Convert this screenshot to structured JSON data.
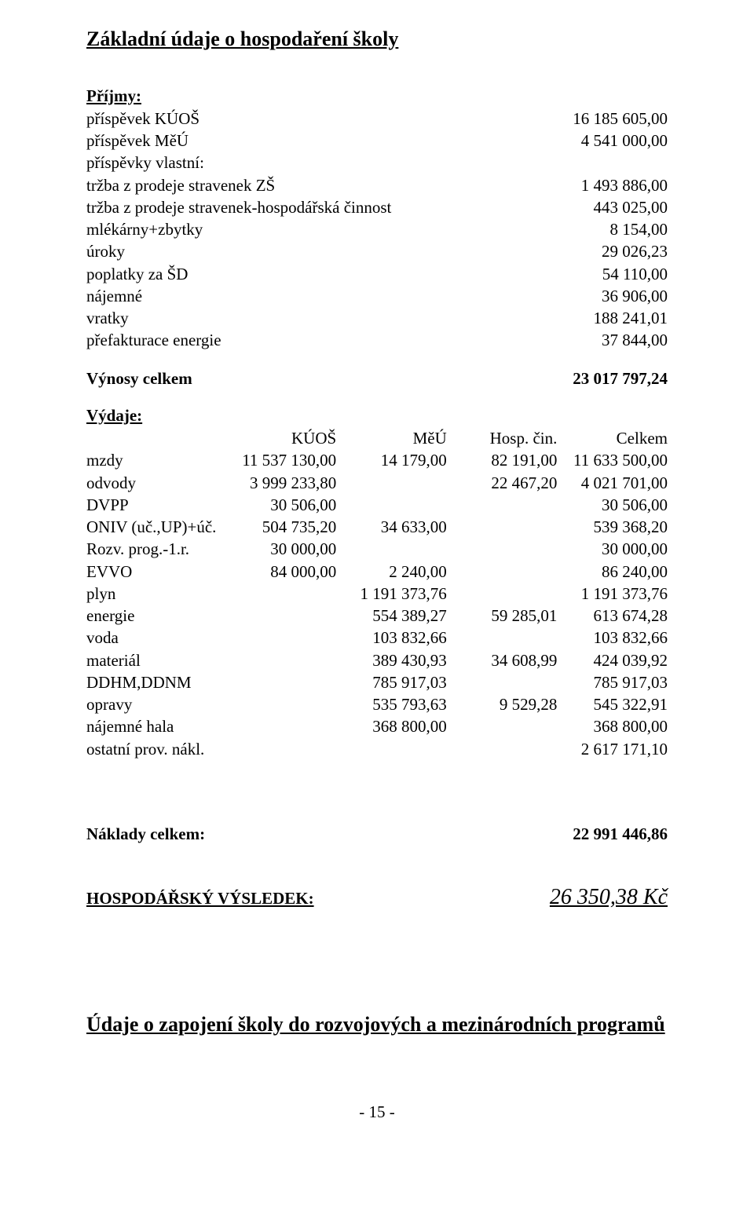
{
  "title_main": "Základní údaje o hospodaření školy",
  "income_heading": "Příjmy:",
  "income": {
    "rows": [
      {
        "label": "příspěvek KÚOŠ",
        "value": "16 185 605,00"
      },
      {
        "label": "příspěvek MěÚ",
        "value": "4 541 000,00"
      },
      {
        "label": "příspěvky vlastní:",
        "value": ""
      },
      {
        "label": "tržba z prodeje stravenek ZŠ",
        "value": "1 493 886,00"
      },
      {
        "label": "tržba z prodeje stravenek-hospodářská činnost",
        "value": "443 025,00"
      },
      {
        "label": "mlékárny+zbytky",
        "value": "8 154,00"
      },
      {
        "label": "úroky",
        "value": "29 026,23"
      },
      {
        "label": "poplatky za ŠD",
        "value": "54 110,00"
      },
      {
        "label": "nájemné",
        "value": "36 906,00"
      },
      {
        "label": "vratky",
        "value": "188 241,01"
      },
      {
        "label": "přefakturace energie",
        "value": "37 844,00"
      }
    ],
    "total_label": "Výnosy celkem",
    "total_value": "23 017 797,24"
  },
  "expenses_heading": "Výdaje:",
  "expenses": {
    "headers": [
      "",
      "KÚOŠ",
      "MěÚ",
      "Hosp. čin.",
      "Celkem"
    ],
    "col_widths_pct": [
      24,
      19,
      19,
      19,
      19
    ],
    "rows": [
      {
        "label": "mzdy",
        "c1": "11 537 130,00",
        "c2": "14 179,00",
        "c3": "82 191,00",
        "c4": "11 633 500,00"
      },
      {
        "label": "odvody",
        "c1": "3 999 233,80",
        "c2": "",
        "c3": "22 467,20",
        "c4": "4 021 701,00"
      },
      {
        "label": "DVPP",
        "c1": "30 506,00",
        "c2": "",
        "c3": "",
        "c4": "30 506,00"
      },
      {
        "label": "ONIV (uč.,UP)+úč.",
        "c1": "504 735,20",
        "c2": "34 633,00",
        "c3": "",
        "c4": "539 368,20"
      },
      {
        "label": "Rozv. prog.-1.r.",
        "c1": "30 000,00",
        "c2": "",
        "c3": "",
        "c4": "30 000,00"
      },
      {
        "label": "EVVO",
        "c1": "84 000,00",
        "c2": "2 240,00",
        "c3": "",
        "c4": "86 240,00"
      },
      {
        "label": "plyn",
        "c1": "",
        "c2": "1 191 373,76",
        "c3": "",
        "c4": "1 191 373,76"
      },
      {
        "label": "energie",
        "c1": "",
        "c2": "554 389,27",
        "c3": "59 285,01",
        "c4": "613 674,28"
      },
      {
        "label": "voda",
        "c1": "",
        "c2": "103 832,66",
        "c3": "",
        "c4": "103 832,66"
      },
      {
        "label": "materiál",
        "c1": "",
        "c2": "389 430,93",
        "c3": "34 608,99",
        "c4": "424 039,92"
      },
      {
        "label": "DDHM,DDNM",
        "c1": "",
        "c2": "785 917,03",
        "c3": "",
        "c4": "785 917,03"
      },
      {
        "label": "opravy",
        "c1": "",
        "c2": "535 793,63",
        "c3": "9 529,28",
        "c4": "545 322,91"
      },
      {
        "label": "nájemné hala",
        "c1": "",
        "c2": "368 800,00",
        "c3": "",
        "c4": "368 800,00"
      },
      {
        "label": "ostatní prov. nákl.",
        "c1": "",
        "c2": "",
        "c3": "",
        "c4": "2 617 171,10"
      }
    ]
  },
  "costs_total_label": "Náklady celkem:",
  "costs_total_value": "22 991 446,86",
  "result_label": "HOSPODÁŘSKÝ VÝSLEDEK:",
  "result_value": "26 350,38 Kč",
  "title_bottom": "Údaje o zapojení školy do rozvojových a mezinárodních programů",
  "footer_page": "- 15 -",
  "colors": {
    "text": "#000000",
    "background": "#ffffff"
  }
}
